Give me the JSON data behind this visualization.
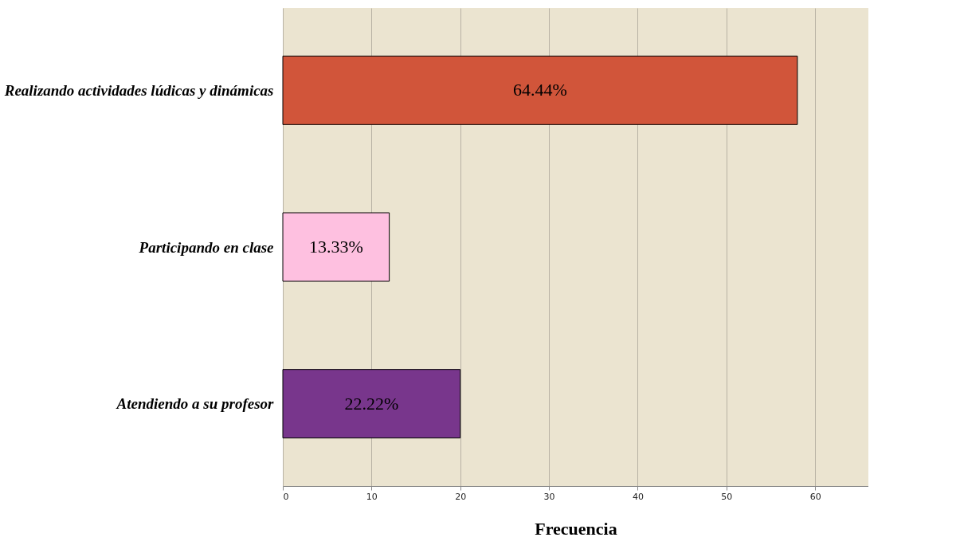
{
  "chart_data": {
    "type": "bar",
    "orientation": "horizontal",
    "categories": [
      "Realizando actividades lúdicas y dinámicas",
      "Participando en clase",
      "Atendiendo a su profesor"
    ],
    "values": [
      58,
      12,
      20
    ],
    "colors": [
      "#d1553a",
      "#fec0e0",
      "#78368c"
    ],
    "annotations": [
      "64.44%",
      "13.33%",
      "22.22%"
    ],
    "xlabel": "Frecuencia",
    "xlim": [
      0,
      66
    ],
    "xticks": [
      0,
      10,
      20,
      30,
      40,
      50,
      60
    ],
    "grid": "x"
  }
}
